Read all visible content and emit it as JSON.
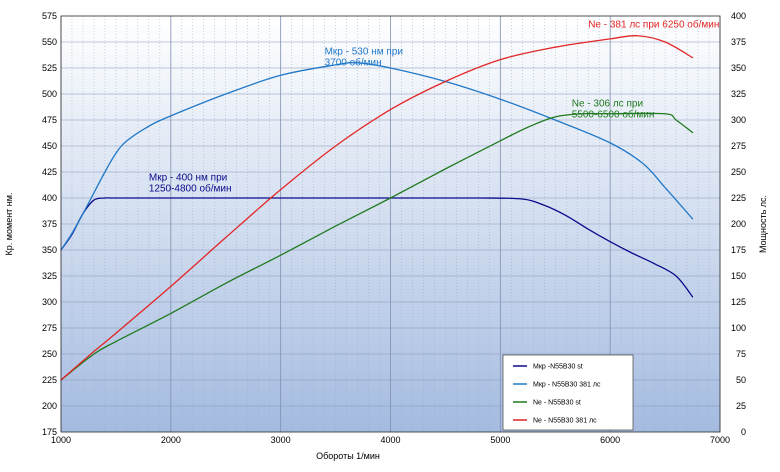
{
  "chart_data": {
    "type": "line",
    "xlabel": "Обороты 1/мин",
    "ylabel_left": "Кр. момент нм.",
    "ylabel_right": "Мощность лс.",
    "xlim": [
      1000,
      7000
    ],
    "ylim_left": [
      175,
      575
    ],
    "ylim_right": [
      0,
      400
    ],
    "x_ticks": [
      1000,
      2000,
      3000,
      4000,
      5000,
      6000,
      7000
    ],
    "y_left_ticks": [
      175,
      200,
      225,
      250,
      275,
      300,
      325,
      350,
      375,
      400,
      425,
      450,
      475,
      500,
      525,
      550,
      575
    ],
    "y_right_ticks": [
      0,
      25,
      50,
      75,
      100,
      125,
      150,
      175,
      200,
      225,
      250,
      275,
      300,
      325,
      350,
      375,
      400
    ],
    "grid": true,
    "legend_position": "bottom-right",
    "series": [
      {
        "name": "Мкр -N55B30 st",
        "axis": "left",
        "color": "#0a0a8c",
        "x": [
          1000,
          1100,
          1200,
          1300,
          1400,
          1500,
          2000,
          3000,
          4000,
          4800,
          5200,
          5400,
          5600,
          5800,
          6000,
          6200,
          6400,
          6600,
          6750
        ],
        "y": [
          350,
          365,
          385,
          398,
          400,
          400,
          400,
          400,
          400,
          400,
          399,
          393,
          383,
          370,
          358,
          347,
          337,
          325,
          305
        ]
      },
      {
        "name": "Мкр - N55B30 381 лс",
        "axis": "left",
        "color": "#1f78c8",
        "x": [
          1000,
          1100,
          1200,
          1300,
          1400,
          1500,
          1600,
          1800,
          2000,
          2500,
          3000,
          3500,
          3700,
          4000,
          4500,
          5000,
          5500,
          6000,
          6300,
          6500,
          6750
        ],
        "y": [
          350,
          366,
          385,
          405,
          425,
          443,
          455,
          469,
          479,
          500,
          518,
          528,
          530,
          525,
          512,
          495,
          475,
          453,
          433,
          410,
          380
        ]
      },
      {
        "name": "Ne - N55B30 st",
        "axis": "right",
        "color": "#1f7a1f",
        "x": [
          1000,
          1300,
          1500,
          2000,
          2500,
          3000,
          3500,
          4000,
          4500,
          5000,
          5250,
          5500,
          5750,
          6000,
          6500,
          6600,
          6750
        ],
        "y": [
          50,
          75,
          87,
          114,
          143,
          170,
          198,
          225,
          253,
          280,
          293,
          303,
          306,
          306,
          306,
          300,
          288
        ]
      },
      {
        "name": "Ne - N55B30 381 лс",
        "axis": "right",
        "color": "#e32626",
        "x": [
          1000,
          1250,
          1500,
          2000,
          2500,
          3000,
          3500,
          4000,
          4500,
          5000,
          5500,
          6000,
          6250,
          6500,
          6750
        ],
        "y": [
          50,
          73,
          95,
          140,
          187,
          233,
          275,
          310,
          337,
          358,
          370,
          378,
          381,
          375,
          360
        ]
      }
    ],
    "annotations": [
      {
        "lines": [
          "Мкр - 530 нм при",
          "3700 об/мин"
        ],
        "color": "#1f78c8",
        "x": 3400,
        "y_left": 538
      },
      {
        "lines": [
          "Ne - 381 лс при 6250 об/мин"
        ],
        "color": "#e32626",
        "x": 5800,
        "y_left": 564
      },
      {
        "lines": [
          "Ne - 306 лс при",
          "5500-6500 об/мин"
        ],
        "color": "#1f7a1f",
        "x": 5650,
        "y_left": 488
      },
      {
        "lines": [
          "Мкр - 400 нм при",
          "1250-4800 об/мин"
        ],
        "color": "#0a0a8c",
        "x": 1800,
        "y_left": 417
      }
    ]
  }
}
